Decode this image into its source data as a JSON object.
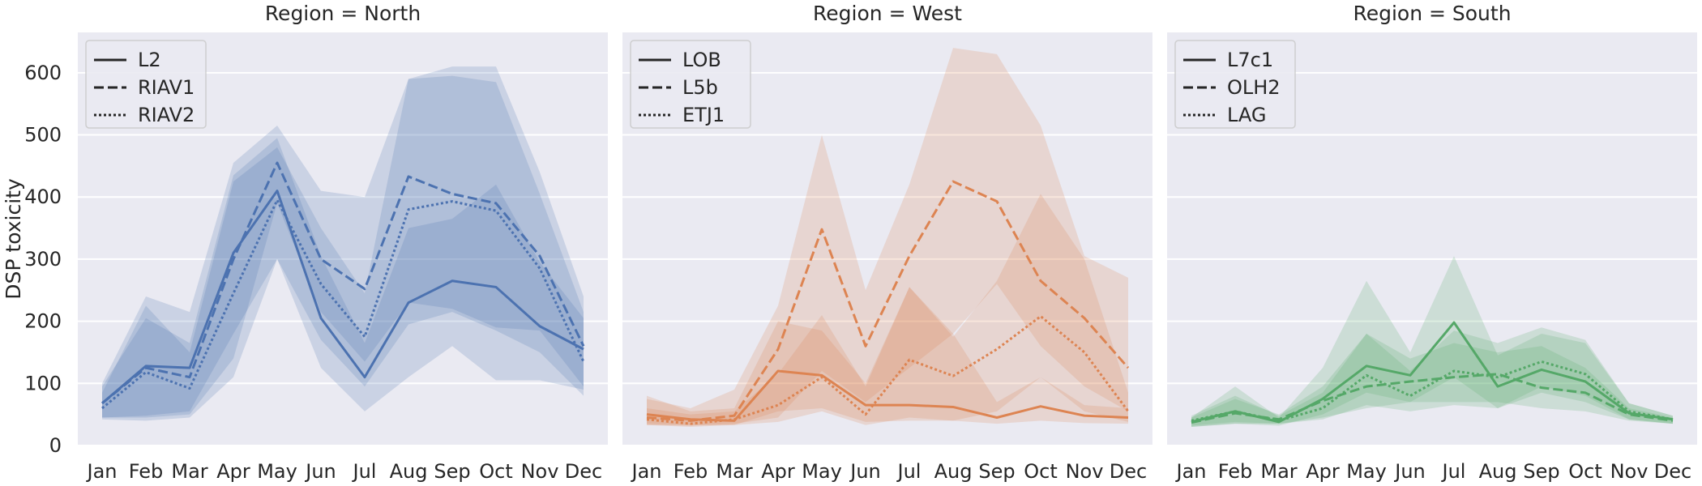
{
  "chart_data": {
    "type": "line",
    "ylabel": "DSP toxicity",
    "ylim": [
      0,
      665
    ],
    "yticks": [
      0,
      100,
      200,
      300,
      400,
      500,
      600
    ],
    "x": [
      "Jan",
      "Feb",
      "Mar",
      "Apr",
      "May",
      "Jun",
      "Jul",
      "Aug",
      "Sep",
      "Oct",
      "Nov",
      "Dec"
    ],
    "grid": true,
    "legend_position": "top-left",
    "panels": [
      {
        "title": "Region = North",
        "color": "#4c72b0",
        "series": [
          {
            "name": "L2",
            "dash": "solid",
            "values": [
              68,
              128,
              125,
              310,
              410,
              205,
              110,
              230,
              265,
              255,
              192,
              155
            ],
            "lower": [
              45,
              48,
              55,
              180,
              300,
              125,
              55,
              110,
              160,
              105,
              105,
              90
            ],
            "upper": [
              95,
              205,
              165,
              435,
              495,
              305,
              165,
              350,
              365,
              420,
              295,
              205
            ]
          },
          {
            "name": "RIAV1",
            "dash": "dashed",
            "values": [
              68,
              125,
              110,
              300,
              455,
              300,
              252,
              433,
              405,
              390,
              305,
              160
            ],
            "lower": [
              45,
              45,
              50,
              140,
              390,
              215,
              135,
              230,
              220,
              190,
              185,
              95
            ],
            "upper": [
              100,
              240,
              215,
              455,
              515,
              410,
              400,
              590,
              610,
              610,
              440,
              240
            ]
          },
          {
            "name": "RIAV2",
            "dash": "dotted",
            "values": [
              60,
              118,
              92,
              245,
              395,
              260,
              175,
              380,
              393,
              378,
              285,
              135
            ],
            "lower": [
              42,
              40,
              45,
              110,
              300,
              170,
              95,
              195,
              215,
              185,
              150,
              80
            ],
            "upper": [
              85,
              225,
              150,
              425,
              480,
              350,
              245,
              590,
              595,
              585,
              405,
              215
            ]
          }
        ]
      },
      {
        "title": "Region = West",
        "color": "#dd8452",
        "series": [
          {
            "name": "LOB",
            "dash": "solid",
            "values": [
              50,
              42,
              40,
              120,
              113,
              65,
              65,
              62,
              45,
              63,
              48,
              45
            ],
            "lower": [
              35,
              33,
              33,
              55,
              60,
              38,
              40,
              40,
              35,
              40,
              36,
              35
            ],
            "upper": [
              80,
              55,
              60,
              200,
              185,
              100,
              255,
              180,
              70,
              110,
              65,
              60
            ]
          },
          {
            "name": "L5b",
            "dash": "dashed",
            "values": [
              45,
              40,
              48,
              155,
              348,
              160,
              305,
              425,
              393,
              265,
              205,
              125
            ],
            "lower": [
              33,
              32,
              35,
              45,
              120,
              70,
              125,
              180,
              260,
              160,
              95,
              55
            ],
            "upper": [
              75,
              60,
              90,
              225,
              500,
              250,
              420,
              640,
              630,
              515,
              305,
              270
            ]
          },
          {
            "name": "ETJ1",
            "dash": "dotted",
            "values": [
              42,
              35,
              42,
              65,
              110,
              50,
              138,
              112,
              155,
              208,
              150,
              55
            ],
            "lower": [
              33,
              30,
              33,
              38,
              55,
              33,
              45,
              40,
              55,
              110,
              55,
              38
            ],
            "upper": [
              60,
              50,
              55,
              115,
              210,
              95,
              255,
              175,
              265,
              405,
              300,
              85
            ]
          }
        ]
      },
      {
        "title": "Region = South",
        "color": "#55a868",
        "series": [
          {
            "name": "L7c1",
            "dash": "solid",
            "values": [
              38,
              55,
              38,
              75,
              128,
              113,
              198,
              95,
              122,
              103,
              52,
              42
            ],
            "lower": [
              30,
              35,
              32,
              50,
              85,
              70,
              110,
              60,
              85,
              70,
              42,
              35
            ],
            "upper": [
              45,
              95,
              45,
              125,
              265,
              150,
              305,
              145,
              180,
              165,
              68,
              48
            ]
          },
          {
            "name": "OLH2",
            "dash": "dashed",
            "values": [
              37,
              52,
              42,
              72,
              95,
              103,
              110,
              115,
              93,
              85,
              50,
              40
            ],
            "lower": [
              30,
              35,
              35,
              45,
              60,
              70,
              70,
              70,
              60,
              55,
              40,
              35
            ],
            "upper": [
              45,
              75,
              50,
              95,
              180,
              140,
              165,
              150,
              160,
              125,
              60,
              45
            ]
          },
          {
            "name": "LAG",
            "dash": "dotted",
            "values": [
              40,
              55,
              40,
              60,
              113,
              80,
              120,
              110,
              135,
              115,
              55,
              42
            ],
            "lower": [
              32,
              38,
              35,
              42,
              65,
              55,
              65,
              60,
              95,
              80,
              42,
              35
            ],
            "upper": [
              48,
              80,
              48,
              85,
              180,
              120,
              185,
              165,
              190,
              170,
              68,
              48
            ]
          }
        ]
      }
    ]
  }
}
